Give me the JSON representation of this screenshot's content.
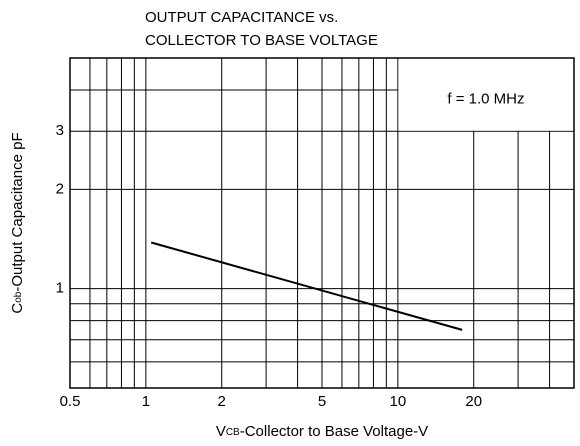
{
  "chart_data": {
    "type": "line",
    "title": [
      "OUTPUT CAPACITANCE vs.",
      "COLLECTOR TO BASE VOLTAGE"
    ],
    "xlabel": {
      "symbol": "V",
      "subscript": "CB",
      "text": "-Collector to Base Voltage-V"
    },
    "ylabel": {
      "symbol": "C",
      "subscript": "ob",
      "text": "-Output Capacitance pF"
    },
    "annotation": "f = 1.0 MHz",
    "x": [
      1.05,
      18
    ],
    "series": [
      {
        "name": "Cob",
        "color": "#000000",
        "values": [
          1.38,
          0.75
        ]
      }
    ],
    "xscale": "log",
    "yscale": "log",
    "xlim": [
      0.5,
      50
    ],
    "ylim": [
      0.5,
      5
    ],
    "xticks": [
      0.5,
      1,
      2,
      5,
      10,
      20
    ],
    "yticks": [
      1,
      2,
      3
    ],
    "xgrid": [
      0.6,
      0.7,
      0.8,
      0.9,
      1,
      2,
      3,
      4,
      5,
      6,
      7,
      8,
      9,
      10,
      20,
      30,
      40
    ],
    "ygrid": [
      0.6,
      0.7,
      0.8,
      0.9,
      1,
      2,
      3,
      4
    ],
    "grid": true
  }
}
